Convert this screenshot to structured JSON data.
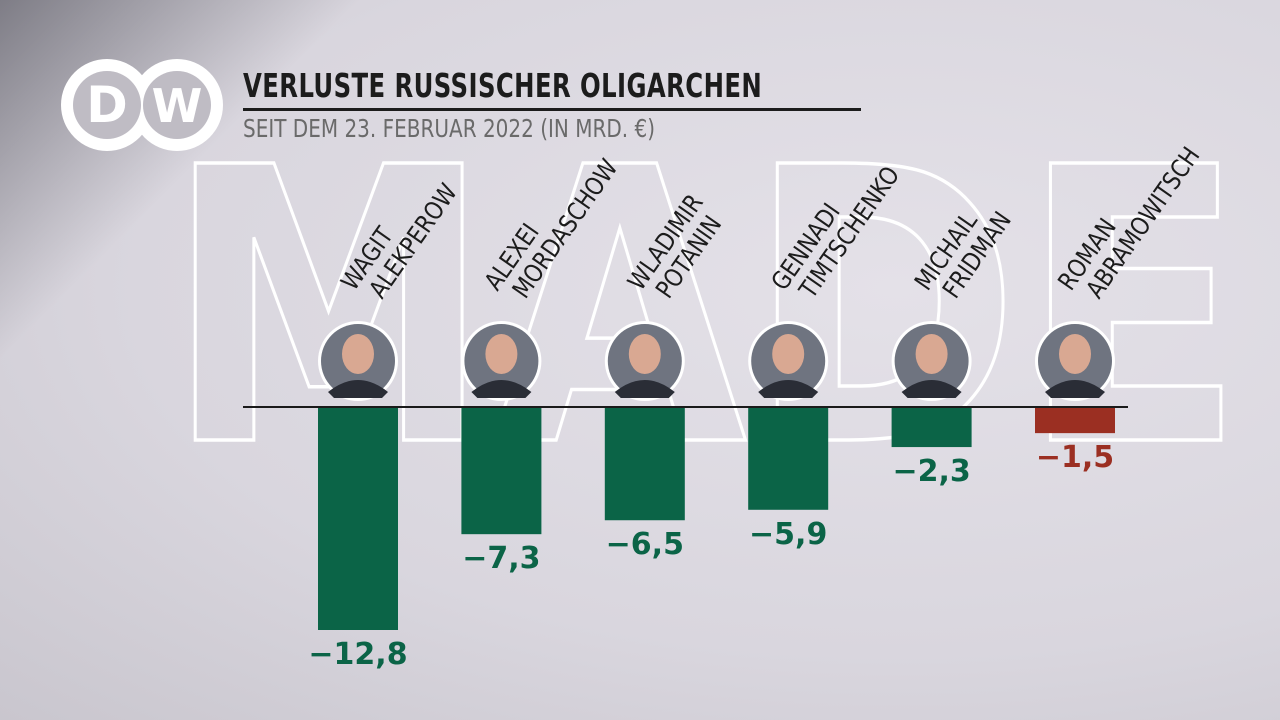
{
  "logo": {
    "text": "DW"
  },
  "watermark": "MADE",
  "chart_data": {
    "type": "bar",
    "title": "VERLUSTE RUSSISCHER OLIGARCHEN",
    "subtitle": "SEIT DEM 23. FEBRUAR 2022 (IN MRD. €)",
    "categories": [
      [
        "WAGIT",
        "ALEKPEROW"
      ],
      [
        "ALEXEI",
        "MORDASCHOW"
      ],
      [
        "WLADIMIR",
        "POTANIN"
      ],
      [
        "GENNADI",
        "TIMTSCHENKO"
      ],
      [
        "MICHAIL",
        "FRIDMAN"
      ],
      [
        "ROMAN",
        "ABRAMOWITSCH"
      ]
    ],
    "values": [
      -12.8,
      -7.3,
      -6.5,
      -5.9,
      -2.3,
      -1.5
    ],
    "value_labels": [
      "−12,8",
      "−7,3",
      "−6,5",
      "−5,9",
      "−2,3",
      "−1,5"
    ],
    "bar_colors": [
      "#0b6447",
      "#0b6447",
      "#0b6447",
      "#0b6447",
      "#0b6447",
      "#9b2f22"
    ],
    "ylim": [
      -12.8,
      0
    ],
    "grid": false,
    "legend": "none"
  }
}
